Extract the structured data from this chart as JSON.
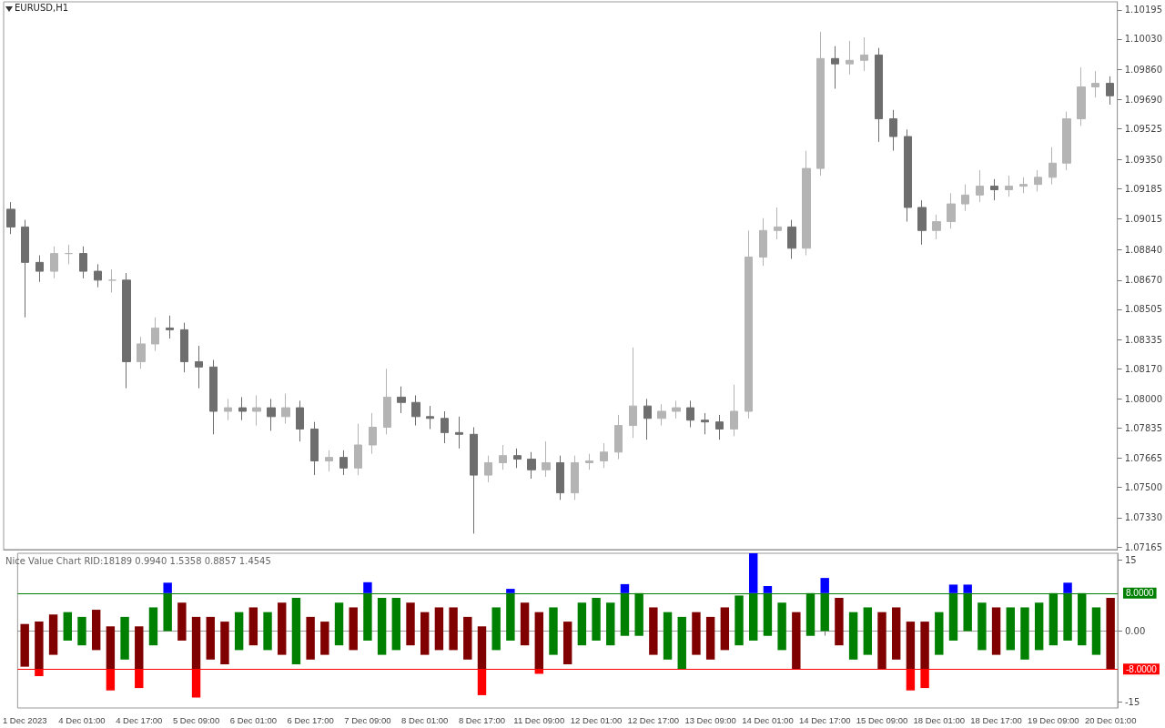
{
  "chart_data": [
    {
      "type": "candlestick",
      "title": "EURUSD,H1",
      "categories": [
        null,
        null,
        null,
        null,
        null,
        null,
        null,
        null,
        null,
        null,
        null,
        null,
        null,
        null,
        null,
        null,
        null,
        null,
        null,
        null,
        null,
        null,
        null,
        null,
        null,
        null,
        null,
        null,
        null,
        null,
        null,
        null,
        null,
        null,
        null,
        null,
        null,
        null,
        null,
        null,
        null,
        null,
        null,
        null,
        null,
        null,
        null,
        null,
        null,
        null,
        null,
        null,
        null,
        null,
        null,
        null,
        null,
        null,
        null,
        null,
        null,
        null,
        null,
        null,
        null,
        null,
        null,
        null,
        null,
        null,
        null,
        null,
        null,
        null,
        null,
        null,
        null
      ],
      "ohlc": [
        [
          1.0907,
          1.0911,
          1.0893,
          1.0897
        ],
        [
          1.0897,
          1.0901,
          1.0846,
          1.0877
        ],
        [
          1.0877,
          1.0881,
          1.0866,
          1.0872
        ],
        [
          1.0872,
          1.0886,
          1.0868,
          1.0882
        ],
        [
          1.0882,
          1.0887,
          1.0876,
          1.0882
        ],
        [
          1.0882,
          1.0886,
          1.0868,
          1.0872
        ],
        [
          1.0872,
          1.0876,
          1.0863,
          1.0867
        ],
        [
          1.0867,
          1.0873,
          1.086,
          1.0867
        ],
        [
          1.0867,
          1.0871,
          1.0806,
          1.0821
        ],
        [
          1.0821,
          1.0835,
          1.0817,
          1.0831
        ],
        [
          1.0831,
          1.0846,
          1.0827,
          1.084
        ],
        [
          1.084,
          1.0847,
          1.0834,
          1.0839
        ],
        [
          1.0839,
          1.0843,
          1.0815,
          1.0821
        ],
        [
          1.0821,
          1.083,
          1.0806,
          1.0818
        ],
        [
          1.0818,
          1.0822,
          1.078,
          1.0793
        ],
        [
          1.0793,
          1.08,
          1.0788,
          1.0795
        ],
        [
          1.0795,
          1.0801,
          1.0788,
          1.0793
        ],
        [
          1.0793,
          1.0802,
          1.0785,
          1.0795
        ],
        [
          1.0795,
          1.08,
          1.0782,
          1.079
        ],
        [
          1.079,
          1.0803,
          1.0786,
          1.0795
        ],
        [
          1.0795,
          1.0799,
          1.0776,
          1.0783
        ],
        [
          1.0783,
          1.0787,
          1.0757,
          1.0765
        ],
        [
          1.0765,
          1.0771,
          1.0759,
          1.0767
        ],
        [
          1.0767,
          1.0771,
          1.0757,
          1.0761
        ],
        [
          1.0761,
          1.0786,
          1.0757,
          1.0774
        ],
        [
          1.0774,
          1.0792,
          1.0769,
          1.0784
        ],
        [
          1.0784,
          1.0817,
          1.078,
          1.0801
        ],
        [
          1.0801,
          1.0807,
          1.0792,
          1.0798
        ],
        [
          1.0798,
          1.0802,
          1.0785,
          1.079
        ],
        [
          1.079,
          1.0796,
          1.0783,
          1.0789
        ],
        [
          1.0789,
          1.0793,
          1.0775,
          1.0781
        ],
        [
          1.0781,
          1.079,
          1.0772,
          1.078
        ],
        [
          1.078,
          1.0784,
          1.0724,
          1.0757
        ],
        [
          1.0757,
          1.0768,
          1.0753,
          1.0764
        ],
        [
          1.0764,
          1.0774,
          1.076,
          1.0768
        ],
        [
          1.0768,
          1.0772,
          1.0761,
          1.0766
        ],
        [
          1.0766,
          1.077,
          1.0755,
          1.076
        ],
        [
          1.076,
          1.0776,
          1.0756,
          1.0764
        ],
        [
          1.0764,
          1.0768,
          1.0743,
          1.0747
        ],
        [
          1.0747,
          1.0768,
          1.0743,
          1.0764
        ],
        [
          1.0764,
          1.0769,
          1.076,
          1.0765
        ],
        [
          1.0765,
          1.0775,
          1.0761,
          1.077
        ],
        [
          1.077,
          1.0791,
          1.0766,
          1.0785
        ],
        [
          1.0785,
          1.0829,
          1.0778,
          1.0796
        ],
        [
          1.0796,
          1.08,
          1.0777,
          1.0789
        ],
        [
          1.0789,
          1.0797,
          1.0785,
          1.0793
        ],
        [
          1.0793,
          1.0799,
          1.0789,
          1.0795
        ],
        [
          1.0795,
          1.0799,
          1.0784,
          1.0788
        ],
        [
          1.0788,
          1.0792,
          1.078,
          1.0787
        ],
        [
          1.0787,
          1.0791,
          1.0777,
          1.0783
        ],
        [
          1.0783,
          1.0808,
          1.0779,
          1.0793
        ],
        [
          1.0793,
          1.0895,
          1.0789,
          1.088
        ],
        [
          1.088,
          1.0902,
          1.0875,
          1.0895
        ],
        [
          1.0895,
          1.0908,
          1.089,
          1.0897
        ],
        [
          1.0897,
          1.0901,
          1.0879,
          1.0885
        ],
        [
          1.0885,
          1.094,
          1.0881,
          1.093
        ],
        [
          1.093,
          1.1007,
          1.0926,
          1.0992
        ],
        [
          1.0992,
          1.0999,
          1.0975,
          1.0989
        ],
        [
          1.0989,
          1.1002,
          1.0983,
          1.0991
        ],
        [
          1.0991,
          1.1004,
          1.0985,
          1.0994
        ],
        [
          1.0994,
          1.0998,
          1.0945,
          1.0958
        ],
        [
          1.0958,
          1.0963,
          1.094,
          1.0948
        ],
        [
          1.0948,
          1.0952,
          1.09,
          1.0908
        ],
        [
          1.0908,
          1.0912,
          1.0887,
          1.0895
        ],
        [
          1.0895,
          1.0904,
          1.089,
          1.09
        ],
        [
          1.09,
          1.0916,
          1.0896,
          1.091
        ],
        [
          1.091,
          1.0921,
          1.0906,
          1.0915
        ],
        [
          1.0915,
          1.0929,
          1.0911,
          1.092
        ],
        [
          1.092,
          1.0924,
          1.0912,
          1.0918
        ],
        [
          1.0918,
          1.0926,
          1.0914,
          1.092
        ],
        [
          1.092,
          1.0925,
          1.0916,
          1.0921
        ],
        [
          1.0921,
          1.0929,
          1.0917,
          1.0925
        ],
        [
          1.0925,
          1.0942,
          1.0921,
          1.0933
        ],
        [
          1.0933,
          1.0962,
          1.0929,
          1.0958
        ],
        [
          1.0958,
          1.0987,
          1.0954,
          1.0976
        ],
        [
          1.0976,
          1.0985,
          1.097,
          1.0978
        ],
        [
          1.0978,
          1.0982,
          1.0966,
          1.0971
        ]
      ],
      "colors": [
        "#6e6e6e",
        "#6e6e6e",
        "#6e6e6e",
        "#b4b4b4",
        "#b4b4b4",
        "#6e6e6e",
        "#6e6e6e",
        "#b4b4b4",
        "#6e6e6e",
        "#b4b4b4",
        "#b4b4b4",
        "#6e6e6e",
        "#6e6e6e",
        "#6e6e6e",
        "#6e6e6e",
        "#b4b4b4",
        "#6e6e6e",
        "#b4b4b4",
        "#6e6e6e",
        "#b4b4b4",
        "#6e6e6e",
        "#6e6e6e",
        "#b4b4b4",
        "#6e6e6e",
        "#b4b4b4",
        "#b4b4b4",
        "#b4b4b4",
        "#6e6e6e",
        "#6e6e6e",
        "#6e6e6e",
        "#6e6e6e",
        "#6e6e6e",
        "#6e6e6e",
        "#b4b4b4",
        "#b4b4b4",
        "#6e6e6e",
        "#6e6e6e",
        "#b4b4b4",
        "#6e6e6e",
        "#b4b4b4",
        "#b4b4b4",
        "#b4b4b4",
        "#b4b4b4",
        "#b4b4b4",
        "#6e6e6e",
        "#b4b4b4",
        "#b4b4b4",
        "#6e6e6e",
        "#6e6e6e",
        "#6e6e6e",
        "#b4b4b4",
        "#b4b4b4",
        "#b4b4b4",
        "#b4b4b4",
        "#6e6e6e",
        "#b4b4b4",
        "#b4b4b4",
        "#6e6e6e",
        "#b4b4b4",
        "#b4b4b4",
        "#6e6e6e",
        "#6e6e6e",
        "#6e6e6e",
        "#6e6e6e",
        "#b4b4b4",
        "#b4b4b4",
        "#b4b4b4",
        "#b4b4b4",
        "#6e6e6e",
        "#b4b4b4",
        "#b4b4b4",
        "#b4b4b4",
        "#b4b4b4",
        "#b4b4b4",
        "#b4b4b4",
        "#b4b4b4",
        "#6e6e6e"
      ],
      "ylim": [
        1.0715,
        1.1024
      ],
      "yticks": [
        1.07165,
        {
          "value": 1.0733,
          "label": "1.07330"
        },
        {
          "value": 1.075,
          "label": "1.07500"
        },
        1.07665,
        1.07835,
        {
          "value": 1.08,
          "label": "1.08000"
        },
        {
          "value": 1.0817,
          "label": "1.08170"
        },
        1.08335,
        1.08505,
        {
          "value": 1.0867,
          "label": "1.08670"
        },
        {
          "value": 1.0884,
          "label": "1.08840"
        },
        1.09015,
        1.09185,
        {
          "value": 1.0935,
          "label": "1.09350"
        },
        1.09525,
        {
          "value": 1.0969,
          "label": "1.09690"
        },
        {
          "value": 1.0986,
          "label": "1.09860"
        },
        {
          "value": 1.1003,
          "label": "1.10030"
        },
        1.10195
      ],
      "tick_labels": "y"
    },
    {
      "type": "bar",
      "title": "Nice Value Chart RID:18189 0.9940 1.5358 0.8857 1.4545",
      "categories": [
        "1 Dec 2023",
        null,
        null,
        null,
        "4 Dec 01:00",
        null,
        null,
        null,
        "4 Dec 17:00",
        null,
        null,
        null,
        "5 Dec 09:00",
        null,
        null,
        null,
        "6 Dec 01:00",
        null,
        null,
        null,
        "6 Dec 17:00",
        null,
        null,
        null,
        "7 Dec 09:00",
        null,
        null,
        null,
        "8 Dec 01:00",
        null,
        null,
        null,
        "8 Dec 17:00",
        null,
        null,
        null,
        "11 Dec 09:00",
        null,
        null,
        null,
        "12 Dec 01:00",
        null,
        null,
        null,
        "12 Dec 17:00",
        null,
        null,
        null,
        "13 Dec 09:00",
        null,
        null,
        null,
        "14 Dec 01:00",
        null,
        null,
        null,
        "14 Dec 17:00",
        null,
        null,
        null,
        "15 Dec 09:00",
        null,
        null,
        null,
        "18 Dec 01:00",
        null,
        null,
        null,
        "18 Dec 17:00",
        null,
        null,
        null,
        "19 Dec 09:00",
        null,
        null,
        null,
        "20 Dec 01:00"
      ],
      "series": [
        {
          "base": [
            -7.5,
            -8,
            -5,
            -2,
            -3,
            -4,
            -8,
            -6,
            -8,
            -3,
            0,
            -2,
            -8,
            -6,
            -7,
            -4,
            -3,
            -4,
            -5,
            -7,
            -6,
            -5,
            -3,
            -4,
            -2,
            -5,
            -4,
            -3,
            -5,
            -4,
            -4,
            -6,
            -8,
            -4,
            -2,
            -3,
            -8,
            -5,
            -7,
            -3,
            -2,
            -3,
            -1,
            -1,
            -5,
            -6,
            -8,
            -5,
            -6,
            -4,
            -3,
            -2,
            -1,
            -4,
            -8,
            -1,
            0,
            -3,
            -6,
            -5,
            -8,
            -6,
            -8,
            -8,
            -5,
            -2,
            0,
            -4,
            -5,
            -4,
            -6,
            -4,
            -3,
            -2,
            -3,
            -5,
            -8
          ],
          "values": [
            9,
            10,
            8.5,
            6,
            6,
            8.5,
            9,
            9,
            9,
            8,
            8,
            8,
            11,
            9,
            9,
            8,
            8,
            8,
            11,
            14,
            9,
            7,
            9,
            9,
            10,
            12,
            11,
            9,
            9,
            9,
            9,
            9,
            9,
            9,
            10,
            9,
            12,
            10,
            9,
            9,
            9,
            9,
            9,
            9,
            10,
            10,
            11,
            9,
            9,
            9,
            10.5,
            10,
            9,
            10,
            12,
            9,
            8,
            10,
            10,
            10,
            12,
            11,
            10,
            10,
            9,
            10,
            8,
            10,
            10,
            9,
            11,
            10,
            11,
            10,
            11,
            10,
            15
          ],
          "colors": [
            "#800000",
            "#800000",
            "#800000",
            "#008000",
            "#008000",
            "#800000",
            "#800000",
            "#008000",
            "#800000",
            "#008000",
            "#008000",
            "#800000",
            "#800000",
            "#800000",
            "#800000",
            "#008000",
            "#800000",
            "#008000",
            "#800000",
            "#008000",
            "#800000",
            "#800000",
            "#008000",
            "#800000",
            "#008000",
            "#008000",
            "#008000",
            "#800000",
            "#800000",
            "#800000",
            "#800000",
            "#800000",
            "#800000",
            "#008000",
            "#008000",
            "#800000",
            "#800000",
            "#008000",
            "#800000",
            "#008000",
            "#008000",
            "#008000",
            "#008000",
            "#008000",
            "#800000",
            "#008000",
            "#008000",
            "#800000",
            "#800000",
            "#800000",
            "#008000",
            "#008000",
            "#008000",
            "#008000",
            "#800000",
            "#008000",
            "#008000",
            "#800000",
            "#008000",
            "#008000",
            "#800000",
            "#800000",
            "#800000",
            "#800000",
            "#008000",
            "#008000",
            "#008000",
            "#008000",
            "#800000",
            "#008000",
            "#008000",
            "#008000",
            "#008000",
            "#008000",
            "#008000",
            "#008000",
            "#800000"
          ]
        },
        {
          "base": [
            null,
            -9.5,
            null,
            null,
            null,
            null,
            -12.5,
            null,
            -12,
            null,
            8,
            null,
            -14,
            null,
            null,
            null,
            null,
            null,
            null,
            null,
            null,
            null,
            null,
            null,
            8,
            null,
            null,
            null,
            null,
            null,
            null,
            null,
            -13.5,
            null,
            8,
            null,
            -9,
            null,
            null,
            null,
            null,
            null,
            8,
            null,
            null,
            null,
            null,
            null,
            null,
            null,
            null,
            8,
            8,
            null,
            null,
            null,
            8,
            null,
            null,
            null,
            null,
            null,
            -12.5,
            -12,
            null,
            8,
            8,
            null,
            null,
            null,
            null,
            null,
            null,
            8,
            null,
            null,
            null
          ],
          "values": [
            null,
            1.5,
            null,
            null,
            null,
            null,
            4.5,
            null,
            4,
            null,
            2.2,
            null,
            6,
            null,
            null,
            null,
            null,
            null,
            null,
            null,
            null,
            null,
            null,
            null,
            2.3,
            null,
            null,
            null,
            null,
            null,
            null,
            null,
            5.5,
            null,
            0.9,
            null,
            1,
            null,
            null,
            null,
            null,
            null,
            1.9,
            null,
            null,
            null,
            null,
            null,
            null,
            null,
            null,
            8.4,
            1.5,
            null,
            null,
            null,
            3.2,
            null,
            null,
            null,
            null,
            null,
            4.5,
            4,
            null,
            1.8,
            1.8,
            null,
            null,
            null,
            null,
            null,
            null,
            2.2,
            null,
            null,
            null
          ],
          "colors": [
            null,
            "#ff0000",
            null,
            null,
            null,
            null,
            "#ff0000",
            null,
            "#ff0000",
            null,
            "#0000ff",
            null,
            "#ff0000",
            null,
            null,
            null,
            null,
            null,
            null,
            null,
            null,
            null,
            null,
            null,
            "#0000ff",
            null,
            null,
            null,
            null,
            null,
            null,
            null,
            "#ff0000",
            null,
            "#0000ff",
            null,
            "#ff0000",
            null,
            null,
            null,
            null,
            null,
            "#0000ff",
            null,
            null,
            null,
            null,
            null,
            null,
            null,
            null,
            "#0000ff",
            "#0000ff",
            null,
            null,
            null,
            "#0000ff",
            null,
            null,
            null,
            null,
            null,
            "#ff0000",
            "#ff0000",
            null,
            "#0000ff",
            "#0000ff",
            null,
            null,
            null,
            null,
            null,
            null,
            "#0000ff",
            null,
            null,
            null
          ]
        }
      ],
      "ylim": [
        -16.2,
        16.4
      ],
      "yticks": [
        15,
        {
          "value": 0,
          "label": "0.00"
        },
        -15
      ],
      "ref_lines": [
        {
          "axis": "y",
          "value": 8,
          "label": "8.0000",
          "color": "#008000"
        },
        {
          "axis": "y",
          "value": -8,
          "label": "-8.0000",
          "color": "#ff0000"
        }
      ]
    }
  ]
}
